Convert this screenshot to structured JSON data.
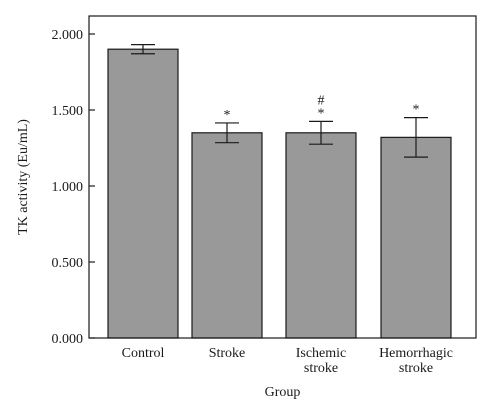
{
  "chart_data": {
    "type": "bar",
    "title": "",
    "xlabel": "Group",
    "ylabel": "TK activity (Eu/mL)",
    "ylim": [
      0,
      2
    ],
    "yticks": [
      "0.000",
      "0.500",
      "1.000",
      "1.500",
      "2.000"
    ],
    "ytick_values": [
      0,
      0.5,
      1,
      1.5,
      2
    ],
    "categories": [
      [
        "Control"
      ],
      [
        "Stroke"
      ],
      [
        "Ischemic",
        "stroke"
      ],
      [
        "Hemorrhagic",
        "stroke"
      ]
    ],
    "values": [
      1.9,
      1.35,
      1.35,
      1.32
    ],
    "error": [
      0.03,
      0.065,
      0.075,
      0.13
    ],
    "annotations": [
      [],
      [
        "*"
      ],
      [
        "#",
        "*"
      ],
      [
        "*"
      ]
    ],
    "bar_color": "#999999",
    "grid": false,
    "legend": "none"
  }
}
